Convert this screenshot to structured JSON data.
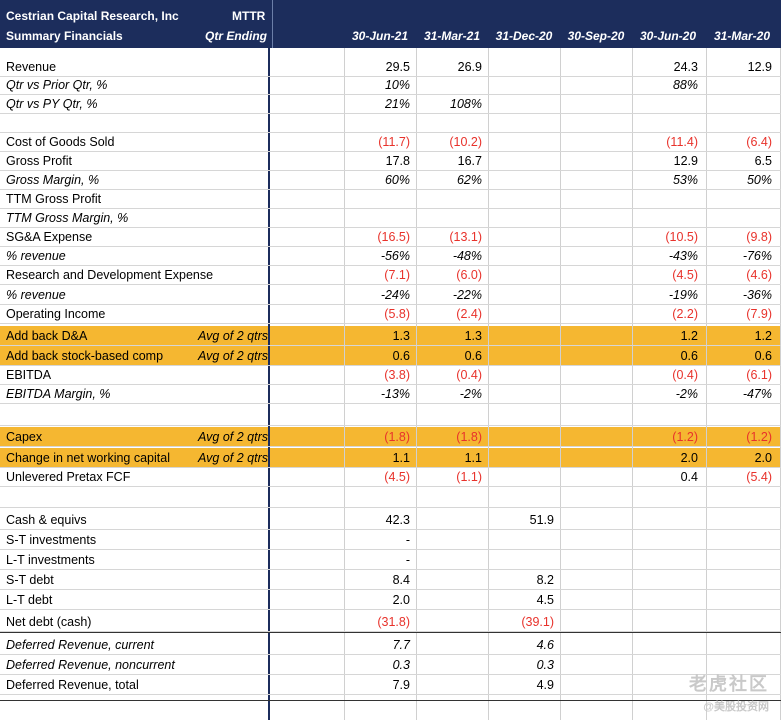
{
  "header": {
    "company": "Cestrian Capital Research, Inc",
    "subtitle": "Summary Financials",
    "ticker": "MTTR",
    "period_label": "Qtr Ending",
    "columns": [
      "30-Jun-21",
      "31-Mar-21",
      "31-Dec-20",
      "30-Sep-20",
      "30-Jun-20",
      "31-Mar-20"
    ]
  },
  "rows": [
    {
      "label": "Revenue",
      "values": [
        "29.5",
        "26.9",
        "",
        "",
        "24.3",
        "12.9"
      ]
    },
    {
      "label": "Qtr vs Prior Qtr, %",
      "italic": true,
      "values": [
        "10%",
        "",
        "",
        "",
        "88%",
        ""
      ]
    },
    {
      "label": "Qtr vs PY Qtr, %",
      "italic": true,
      "values": [
        "21%",
        "108%",
        "",
        "",
        "",
        ""
      ]
    },
    {
      "label": "",
      "values": [
        "",
        "",
        "",
        "",
        "",
        ""
      ]
    },
    {
      "label": "Cost of Goods Sold",
      "values": [
        "(11.7)",
        "(10.2)",
        "",
        "",
        "(11.4)",
        "(6.4)"
      ]
    },
    {
      "label": "Gross Profit",
      "values": [
        "17.8",
        "16.7",
        "",
        "",
        "12.9",
        "6.5"
      ]
    },
    {
      "label": "Gross Margin, %",
      "italic": true,
      "values": [
        "60%",
        "62%",
        "",
        "",
        "53%",
        "50%"
      ]
    },
    {
      "label": "TTM Gross Profit",
      "values": [
        "",
        "",
        "",
        "",
        "",
        ""
      ]
    },
    {
      "label": "TTM Gross Margin, %",
      "italic": true,
      "values": [
        "",
        "",
        "",
        "",
        "",
        ""
      ]
    },
    {
      "label": "SG&A Expense",
      "values": [
        "(16.5)",
        "(13.1)",
        "",
        "",
        "(10.5)",
        "(9.8)"
      ]
    },
    {
      "label": "% revenue",
      "italic": true,
      "values": [
        "-56%",
        "-48%",
        "",
        "",
        "-43%",
        "-76%"
      ]
    },
    {
      "label": "Research and Development Expense",
      "values": [
        "(7.1)",
        "(6.0)",
        "",
        "",
        "(4.5)",
        "(4.6)"
      ]
    },
    {
      "label": "% revenue",
      "italic": true,
      "values": [
        "-24%",
        "-22%",
        "",
        "",
        "-19%",
        "-36%"
      ]
    },
    {
      "label": "Operating Income",
      "values": [
        "(5.8)",
        "(2.4)",
        "",
        "",
        "(2.2)",
        "(7.9)"
      ]
    },
    {
      "label": "Add back D&A",
      "avg": "Avg of 2 qtrs",
      "highlight": true,
      "values": [
        "1.3",
        "1.3",
        "",
        "",
        "1.2",
        "1.2"
      ]
    },
    {
      "label": "Add back stock-based comp",
      "avg": "Avg of 2 qtrs",
      "highlight": true,
      "values": [
        "0.6",
        "0.6",
        "",
        "",
        "0.6",
        "0.6"
      ]
    },
    {
      "label": "EBITDA",
      "values": [
        "(3.8)",
        "(0.4)",
        "",
        "",
        "(0.4)",
        "(6.1)"
      ]
    },
    {
      "label": "EBITDA Margin, %",
      "italic": true,
      "values": [
        "-13%",
        "-2%",
        "",
        "",
        "-2%",
        "-47%"
      ]
    },
    {
      "label": "",
      "values": [
        "",
        "",
        "",
        "",
        "",
        ""
      ]
    },
    {
      "label": "Capex",
      "avg": "Avg of 2 qtrs",
      "highlight": true,
      "values": [
        "(1.8)",
        "(1.8)",
        "",
        "",
        "(1.2)",
        "(1.2)"
      ]
    },
    {
      "label": "Change in net working capital",
      "avg": "Avg of 2 qtrs",
      "highlight": true,
      "values": [
        "1.1",
        "1.1",
        "",
        "",
        "2.0",
        "2.0"
      ]
    },
    {
      "label": "Unlevered Pretax FCF",
      "values": [
        "(4.5)",
        "(1.1)",
        "",
        "",
        "0.4",
        "(5.4)"
      ]
    },
    {
      "label": "",
      "values": [
        "",
        "",
        "",
        "",
        "",
        ""
      ]
    },
    {
      "label": "Cash & equivs",
      "values": [
        "42.3",
        "",
        "51.9",
        "",
        "",
        ""
      ]
    },
    {
      "label": "S-T investments",
      "values": [
        "-",
        "",
        "",
        "",
        "",
        ""
      ]
    },
    {
      "label": "L-T investments",
      "values": [
        "-",
        "",
        "",
        "",
        "",
        ""
      ]
    },
    {
      "label": "S-T debt",
      "values": [
        "8.4",
        "",
        "8.2",
        "",
        "",
        ""
      ]
    },
    {
      "label": "L-T debt",
      "values": [
        "2.0",
        "",
        "4.5",
        "",
        "",
        ""
      ]
    },
    {
      "label": "Net debt (cash)",
      "values": [
        "(31.8)",
        "",
        "(39.1)",
        "",
        "",
        ""
      ]
    },
    {
      "label": "Deferred Revenue, current",
      "italic": true,
      "values": [
        "7.7",
        "",
        "4.6",
        "",
        "",
        ""
      ]
    },
    {
      "label": "Deferred Revenue, noncurrent",
      "italic": true,
      "values": [
        "0.3",
        "",
        "0.3",
        "",
        "",
        ""
      ]
    },
    {
      "label": "Deferred Revenue, total",
      "values": [
        "7.9",
        "",
        "4.9",
        "",
        "",
        ""
      ]
    }
  ],
  "watermark": {
    "line1": "老虎社区",
    "line2": "@美股投资网"
  },
  "colors": {
    "header_bg": "#1c2d5c",
    "highlight": "#f5b731",
    "negative": "#e8322b"
  }
}
